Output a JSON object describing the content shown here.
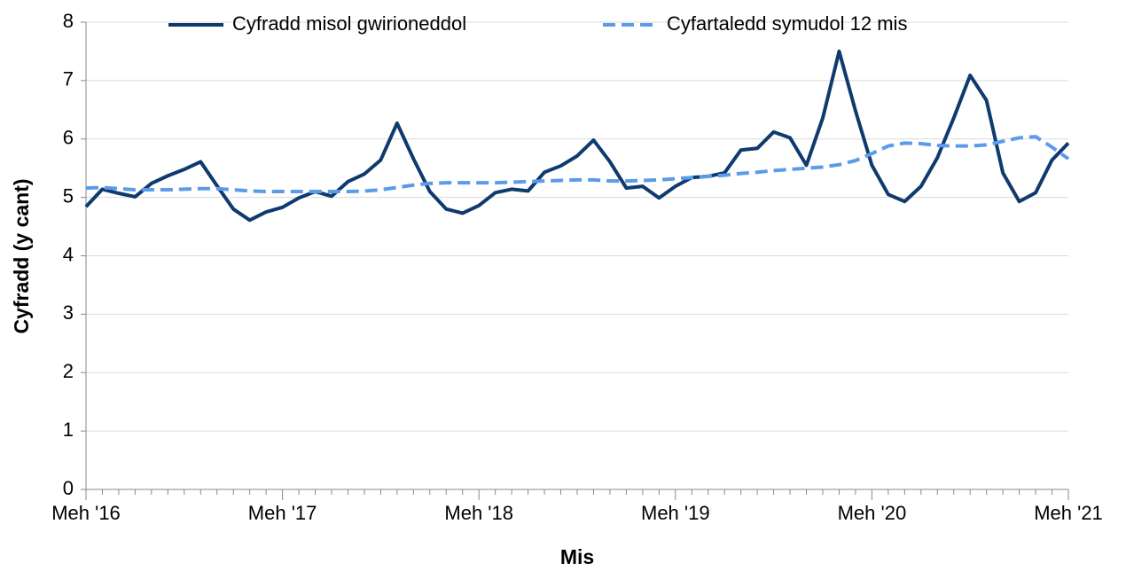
{
  "chart_data": {
    "type": "line",
    "x_label": "Mis",
    "y_label": "Cyfradd (y cant)",
    "categories": [
      "Meh '16",
      null,
      null,
      null,
      null,
      null,
      null,
      null,
      null,
      null,
      null,
      null,
      "Meh '17",
      null,
      null,
      null,
      null,
      null,
      null,
      null,
      null,
      null,
      null,
      null,
      "Meh '18",
      null,
      null,
      null,
      null,
      null,
      null,
      null,
      null,
      null,
      null,
      null,
      "Meh '19",
      null,
      null,
      null,
      null,
      null,
      null,
      null,
      null,
      null,
      null,
      null,
      "Meh '20",
      null,
      null,
      null,
      null,
      null,
      null,
      null,
      null,
      null,
      null,
      null,
      "Meh '21"
    ],
    "series": [
      {
        "name": "Cyfradd misol gwirioneddol",
        "color": "#0e3a6e",
        "dash": false,
        "values": [
          4.84,
          5.14,
          5.07,
          5.01,
          5.24,
          5.37,
          5.48,
          5.61,
          5.2,
          4.8,
          4.61,
          4.75,
          4.83,
          4.99,
          5.1,
          5.02,
          5.27,
          5.4,
          5.64,
          6.27,
          5.66,
          5.1,
          4.8,
          4.73,
          4.86,
          5.08,
          5.14,
          5.11,
          5.43,
          5.54,
          5.71,
          5.98,
          5.61,
          5.16,
          5.19,
          4.99,
          5.19,
          5.34,
          5.36,
          5.42,
          5.81,
          5.84,
          6.12,
          6.02,
          5.55,
          6.36,
          7.5,
          6.48,
          5.55,
          5.05,
          4.93,
          5.19,
          5.68,
          6.36,
          7.09,
          6.66,
          5.42,
          4.93,
          5.08,
          5.64,
          5.93
        ]
      },
      {
        "name": "Cyfartaledd symudol 12 mis",
        "color": "#5b9bea",
        "dash": true,
        "values": [
          5.16,
          5.17,
          5.15,
          5.13,
          5.13,
          5.13,
          5.14,
          5.15,
          5.15,
          5.13,
          5.11,
          5.1,
          5.1,
          5.1,
          5.1,
          5.1,
          5.1,
          5.11,
          5.13,
          5.17,
          5.21,
          5.24,
          5.25,
          5.25,
          5.25,
          5.25,
          5.26,
          5.27,
          5.28,
          5.29,
          5.3,
          5.3,
          5.28,
          5.28,
          5.29,
          5.3,
          5.32,
          5.34,
          5.36,
          5.38,
          5.41,
          5.43,
          5.46,
          5.48,
          5.5,
          5.52,
          5.56,
          5.63,
          5.75,
          5.88,
          5.93,
          5.92,
          5.89,
          5.88,
          5.88,
          5.9,
          5.96,
          6.02,
          6.04,
          5.86,
          5.66
        ]
      }
    ],
    "ylim": [
      0,
      8
    ],
    "yticks": [
      0,
      1,
      2,
      3,
      4,
      5,
      6,
      7,
      8
    ],
    "grid": true,
    "legend": "top"
  }
}
